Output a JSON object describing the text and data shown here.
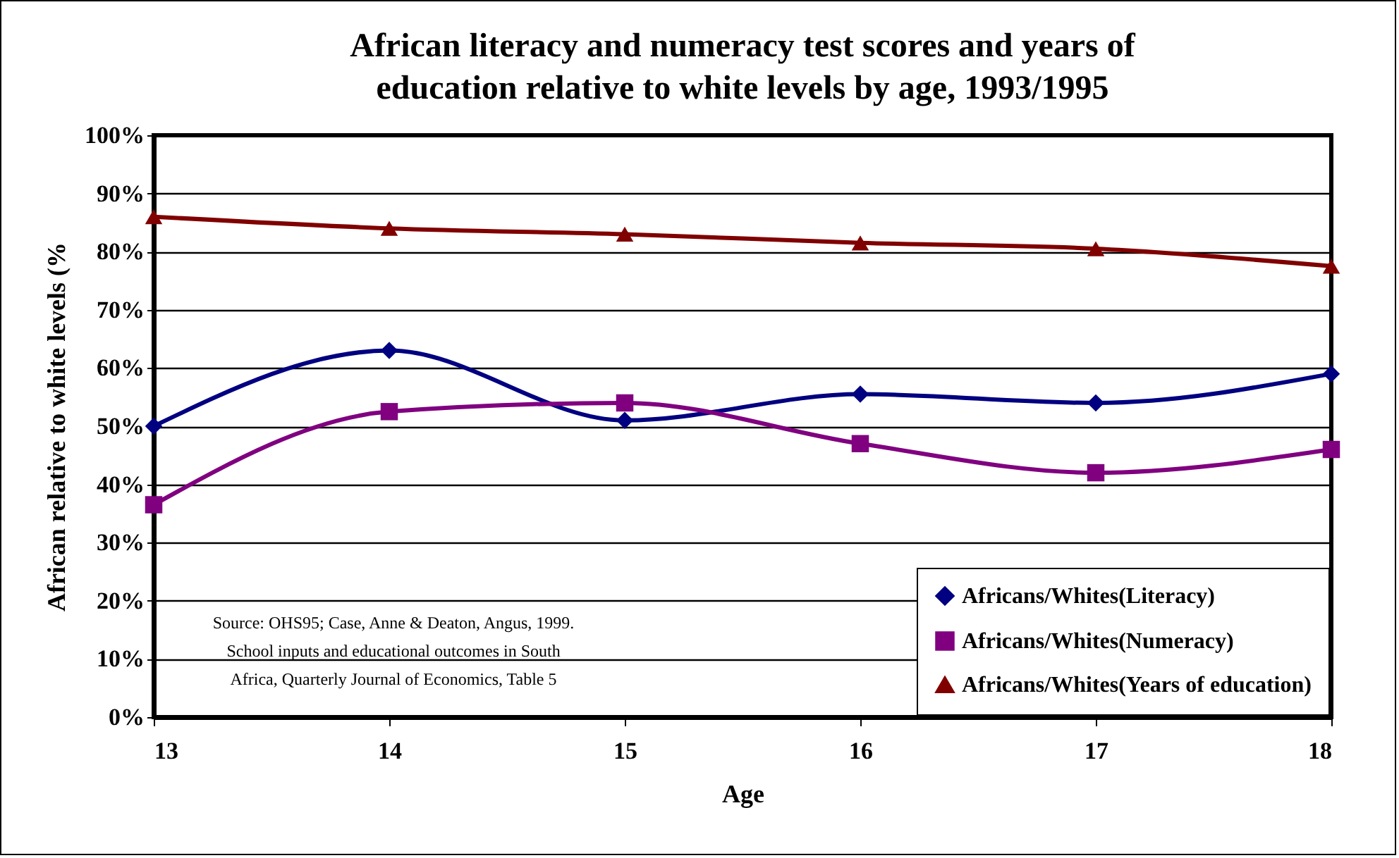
{
  "chart_data": {
    "type": "line",
    "title": "African literacy and numeracy test scores and years of education relative to white levels by age, 1993/1995",
    "xlabel": "Age",
    "ylabel": "African relative to white levels (%",
    "x": [
      13,
      14,
      15,
      16,
      17,
      18
    ],
    "series": [
      {
        "name": "Africans/Whites(Literacy)",
        "color": "#000080",
        "marker": "diamond",
        "values": [
          50,
          63,
          51,
          55.5,
          54,
          59
        ]
      },
      {
        "name": "Africans/Whites(Numeracy)",
        "color": "#800080",
        "marker": "square",
        "values": [
          36.5,
          52.5,
          54,
          47,
          42,
          46
        ]
      },
      {
        "name": "Africans/Whites(Years of education)",
        "color": "#800000",
        "marker": "triangle",
        "values": [
          86,
          84,
          83,
          81.5,
          80.5,
          77.5
        ]
      }
    ],
    "xlim": [
      13,
      18
    ],
    "xticks": [
      13,
      14,
      15,
      16,
      17,
      18
    ],
    "ylim": [
      0,
      100
    ],
    "yticks": [
      {
        "value": 0,
        "label": "0%"
      },
      {
        "value": 10,
        "label": "10%"
      },
      {
        "value": 20,
        "label": "20%"
      },
      {
        "value": 30,
        "label": "30%"
      },
      {
        "value": 40,
        "label": "40%"
      },
      {
        "value": 50,
        "label": "50%"
      },
      {
        "value": 60,
        "label": "60%"
      },
      {
        "value": 70,
        "label": "70%"
      },
      {
        "value": 80,
        "label": "80%"
      },
      {
        "value": 90,
        "label": "90%"
      },
      {
        "value": 100,
        "label": "100%"
      }
    ],
    "grid": "y",
    "legend": "bottom right",
    "line_style": "solid",
    "annotations": [
      "Source: OHS95; Case, Anne & Deaton, Angus, 1999. School inputs and educational outcomes in South Africa, Quarterly Journal of Economics, Table 5"
    ]
  }
}
